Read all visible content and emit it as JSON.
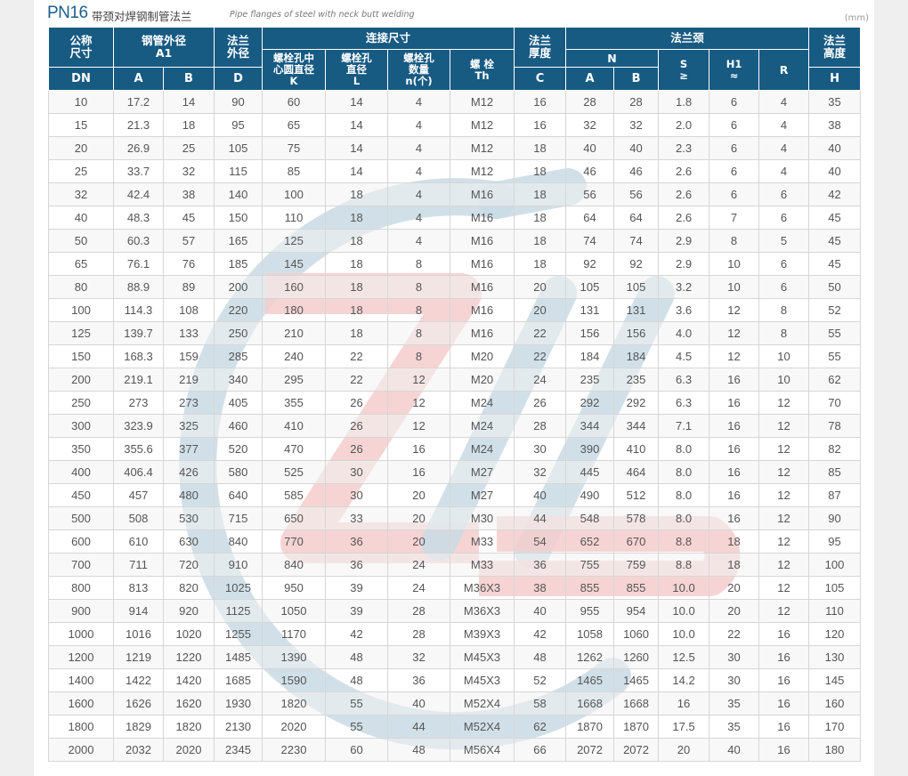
{
  "title": {
    "pn": "PN16",
    "cn": "带颈对焊钢制管法兰",
    "en": "Pipe flanges of steel with neck butt welding",
    "unit": "(mm)"
  },
  "header": {
    "gongcheng": "公称\n尺寸",
    "gangguan": "钢管外径\nA1",
    "falan_waijing": "法兰\n外径",
    "lianjie": "连接尺寸",
    "k_label": "螺栓孔中\n心圆直径\nK",
    "l_label": "螺栓孔\n直径\nL",
    "n_label": "螺栓孔\n数量\nn(个)",
    "th_label": "螺 栓\nTh",
    "houdu": "法兰\n厚度",
    "falanjing": "法兰颈",
    "n_sub": "N",
    "s_label": "S\n≥",
    "h1_label": "H1\n≈",
    "r_label": "R",
    "gaodu": "法兰\n高度",
    "dn": "DN",
    "a1_a": "A",
    "a1_b": "B",
    "d": "D",
    "c": "C",
    "n_a": "A",
    "n_b": "B",
    "h": "H"
  },
  "rows": [
    [
      "10",
      "17.2",
      "14",
      "90",
      "60",
      "14",
      "4",
      "M12",
      "16",
      "28",
      "28",
      "1.8",
      "6",
      "4",
      "35"
    ],
    [
      "15",
      "21.3",
      "18",
      "95",
      "65",
      "14",
      "4",
      "M12",
      "16",
      "32",
      "32",
      "2.0",
      "6",
      "4",
      "38"
    ],
    [
      "20",
      "26.9",
      "25",
      "105",
      "75",
      "14",
      "4",
      "M12",
      "18",
      "40",
      "40",
      "2.3",
      "6",
      "4",
      "40"
    ],
    [
      "25",
      "33.7",
      "32",
      "115",
      "85",
      "14",
      "4",
      "M12",
      "18",
      "46",
      "46",
      "2.6",
      "6",
      "4",
      "40"
    ],
    [
      "32",
      "42.4",
      "38",
      "140",
      "100",
      "18",
      "4",
      "M16",
      "18",
      "56",
      "56",
      "2.6",
      "6",
      "6",
      "42"
    ],
    [
      "40",
      "48.3",
      "45",
      "150",
      "110",
      "18",
      "4",
      "M16",
      "18",
      "64",
      "64",
      "2.6",
      "7",
      "6",
      "45"
    ],
    [
      "50",
      "60.3",
      "57",
      "165",
      "125",
      "18",
      "4",
      "M16",
      "18",
      "74",
      "74",
      "2.9",
      "8",
      "5",
      "45"
    ],
    [
      "65",
      "76.1",
      "76",
      "185",
      "145",
      "18",
      "8",
      "M16",
      "18",
      "92",
      "92",
      "2.9",
      "10",
      "6",
      "45"
    ],
    [
      "80",
      "88.9",
      "89",
      "200",
      "160",
      "18",
      "8",
      "M16",
      "20",
      "105",
      "105",
      "3.2",
      "10",
      "6",
      "50"
    ],
    [
      "100",
      "114.3",
      "108",
      "220",
      "180",
      "18",
      "8",
      "M16",
      "20",
      "131",
      "131",
      "3.6",
      "12",
      "8",
      "52"
    ],
    [
      "125",
      "139.7",
      "133",
      "250",
      "210",
      "18",
      "8",
      "M16",
      "22",
      "156",
      "156",
      "4.0",
      "12",
      "8",
      "55"
    ],
    [
      "150",
      "168.3",
      "159",
      "285",
      "240",
      "22",
      "8",
      "M20",
      "22",
      "184",
      "184",
      "4.5",
      "12",
      "10",
      "55"
    ],
    [
      "200",
      "219.1",
      "219",
      "340",
      "295",
      "22",
      "12",
      "M20",
      "24",
      "235",
      "235",
      "6.3",
      "16",
      "10",
      "62"
    ],
    [
      "250",
      "273",
      "273",
      "405",
      "355",
      "26",
      "12",
      "M24",
      "26",
      "292",
      "292",
      "6.3",
      "16",
      "12",
      "70"
    ],
    [
      "300",
      "323.9",
      "325",
      "460",
      "410",
      "26",
      "12",
      "M24",
      "28",
      "344",
      "344",
      "7.1",
      "16",
      "12",
      "78"
    ],
    [
      "350",
      "355.6",
      "377",
      "520",
      "470",
      "26",
      "16",
      "M24",
      "30",
      "390",
      "410",
      "8.0",
      "16",
      "12",
      "82"
    ],
    [
      "400",
      "406.4",
      "426",
      "580",
      "525",
      "30",
      "16",
      "M27",
      "32",
      "445",
      "464",
      "8.0",
      "16",
      "12",
      "85"
    ],
    [
      "450",
      "457",
      "480",
      "640",
      "585",
      "30",
      "20",
      "M27",
      "40",
      "490",
      "512",
      "8.0",
      "16",
      "12",
      "87"
    ],
    [
      "500",
      "508",
      "530",
      "715",
      "650",
      "33",
      "20",
      "M30",
      "44",
      "548",
      "578",
      "8.0",
      "16",
      "12",
      "90"
    ],
    [
      "600",
      "610",
      "630",
      "840",
      "770",
      "36",
      "20",
      "M33",
      "54",
      "652",
      "670",
      "8.8",
      "18",
      "12",
      "95"
    ],
    [
      "700",
      "711",
      "720",
      "910",
      "840",
      "36",
      "24",
      "M33",
      "36",
      "755",
      "759",
      "8.8",
      "18",
      "12",
      "100"
    ],
    [
      "800",
      "813",
      "820",
      "1025",
      "950",
      "39",
      "24",
      "M36X3",
      "38",
      "855",
      "855",
      "10.0",
      "20",
      "12",
      "105"
    ],
    [
      "900",
      "914",
      "920",
      "1125",
      "1050",
      "39",
      "28",
      "M36X3",
      "40",
      "955",
      "954",
      "10.0",
      "20",
      "12",
      "110"
    ],
    [
      "1000",
      "1016",
      "1020",
      "1255",
      "1170",
      "42",
      "28",
      "M39X3",
      "42",
      "1058",
      "1060",
      "10.0",
      "22",
      "16",
      "120"
    ],
    [
      "1200",
      "1219",
      "1220",
      "1485",
      "1390",
      "48",
      "32",
      "M45X3",
      "48",
      "1262",
      "1260",
      "12.5",
      "30",
      "16",
      "130"
    ],
    [
      "1400",
      "1422",
      "1420",
      "1685",
      "1590",
      "48",
      "36",
      "M45X3",
      "52",
      "1465",
      "1465",
      "14.2",
      "30",
      "16",
      "145"
    ],
    [
      "1600",
      "1626",
      "1620",
      "1930",
      "1820",
      "55",
      "40",
      "M52X4",
      "58",
      "1668",
      "1668",
      "16",
      "35",
      "16",
      "160"
    ],
    [
      "1800",
      "1829",
      "1820",
      "2130",
      "2020",
      "55",
      "44",
      "M52X4",
      "62",
      "1870",
      "1870",
      "17.5",
      "35",
      "16",
      "170"
    ],
    [
      "2000",
      "2032",
      "2020",
      "2345",
      "2230",
      "60",
      "48",
      "M56X4",
      "66",
      "2072",
      "2072",
      "20",
      "40",
      "16",
      "180"
    ]
  ],
  "colors": {
    "header_bg": "#175a82",
    "title_blue": "#1d5f8c",
    "watermark_blue": "#c9dae4",
    "watermark_red": "#f4cccc"
  },
  "watermark_icon": "zy-logo-watermark"
}
